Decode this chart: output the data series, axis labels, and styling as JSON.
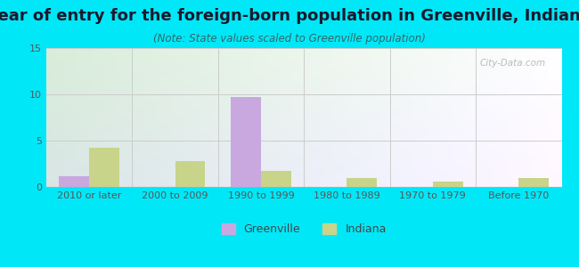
{
  "title": "Year of entry for the foreign-born population in Greenville, Indiana",
  "subtitle": "(Note: State values scaled to Greenville population)",
  "categories": [
    "2010 or later",
    "2000 to 2009",
    "1990 to 1999",
    "1980 to 1989",
    "1970 to 1979",
    "Before 1970"
  ],
  "greenville_values": [
    1.2,
    0,
    9.7,
    0,
    0,
    0
  ],
  "indiana_values": [
    4.2,
    2.8,
    1.7,
    1.0,
    0.6,
    1.0
  ],
  "greenville_color": "#c9a8e0",
  "indiana_color": "#c8d48a",
  "ylim": [
    0,
    15
  ],
  "yticks": [
    0,
    5,
    10,
    15
  ],
  "bar_width": 0.35,
  "outer_bg": "#00e8f8",
  "title_fontsize": 13,
  "subtitle_fontsize": 8.5,
  "tick_fontsize": 8,
  "legend_fontsize": 9,
  "watermark_text": "City-Data.com"
}
